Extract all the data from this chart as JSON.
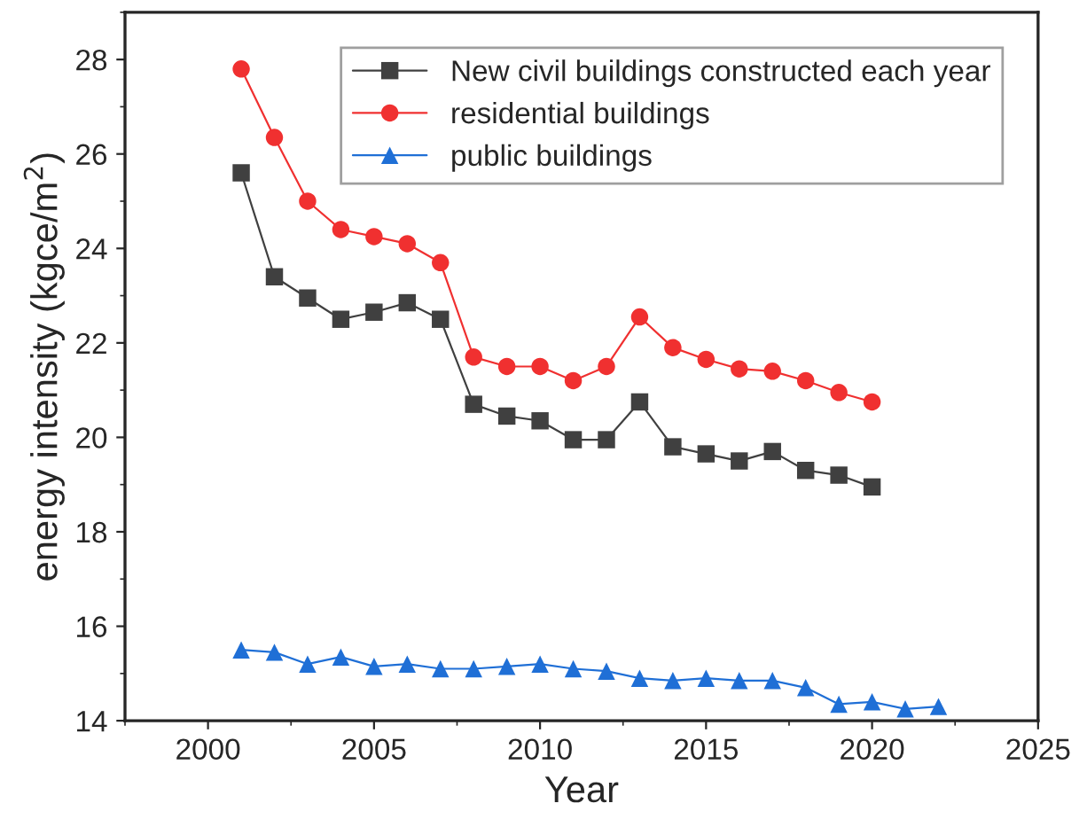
{
  "chart_data": {
    "type": "line",
    "xlabel": "Year",
    "ylabel": "energy intensity (kgce/m$^{2}$)",
    "xlim": [
      1997.5,
      2025
    ],
    "xticks": [
      2000,
      2005,
      2010,
      2015,
      2020,
      2025
    ],
    "ylim": [
      14,
      29
    ],
    "yticks": [
      14,
      16,
      18,
      20,
      22,
      24,
      26,
      28
    ],
    "grid": false,
    "legend": "top right",
    "series": [
      {
        "name": "New civil buildings constructed each year",
        "color": "#404040",
        "marker": "square",
        "x": [
          2001,
          2002,
          2003,
          2004,
          2005,
          2006,
          2007,
          2008,
          2009,
          2010,
          2011,
          2012,
          2013,
          2014,
          2015,
          2016,
          2017,
          2018,
          2019,
          2020
        ],
        "values": [
          25.6,
          23.4,
          22.95,
          22.5,
          22.65,
          22.85,
          22.5,
          20.7,
          20.45,
          20.35,
          19.95,
          19.95,
          20.75,
          19.8,
          19.65,
          19.5,
          19.7,
          19.3,
          19.2,
          18.95
        ]
      },
      {
        "name": "residential buildings",
        "color": "#f03030",
        "marker": "circle",
        "x": [
          2001,
          2002,
          2003,
          2004,
          2005,
          2006,
          2007,
          2008,
          2009,
          2010,
          2011,
          2012,
          2013,
          2014,
          2015,
          2016,
          2017,
          2018,
          2019,
          2020
        ],
        "values": [
          27.8,
          26.35,
          25.0,
          24.4,
          24.25,
          24.1,
          23.7,
          21.7,
          21.5,
          21.5,
          21.2,
          21.5,
          22.55,
          21.9,
          21.65,
          21.45,
          21.4,
          21.2,
          20.95,
          20.75
        ]
      },
      {
        "name": "public buildings",
        "color": "#1f6fd6",
        "marker": "triangle",
        "x": [
          2001,
          2002,
          2003,
          2004,
          2005,
          2006,
          2007,
          2008,
          2009,
          2010,
          2011,
          2012,
          2013,
          2014,
          2015,
          2016,
          2017,
          2018,
          2019,
          2020,
          2021,
          2022
        ],
        "values": [
          15.5,
          15.45,
          15.2,
          15.35,
          15.15,
          15.2,
          15.1,
          15.1,
          15.15,
          15.2,
          15.1,
          15.05,
          14.9,
          14.85,
          14.9,
          14.85,
          14.85,
          14.7,
          14.35,
          14.4,
          14.25,
          14.3
        ]
      }
    ]
  }
}
